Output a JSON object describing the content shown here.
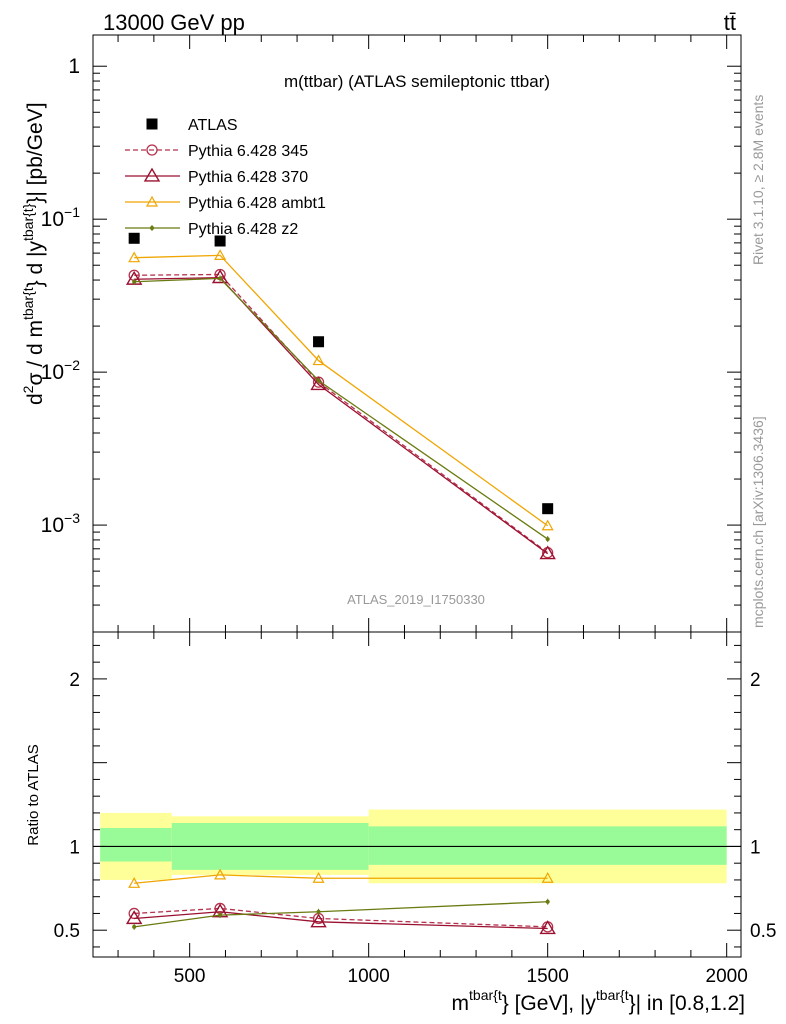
{
  "header": {
    "left": "13000 GeV pp",
    "right": "tt̄"
  },
  "side_labels": {
    "rivet": "Rivet 3.1.10, ≥ 2.8M events",
    "mcplots": "mcplots.cern.ch [arXiv:1306.3436]"
  },
  "chart_data": [
    {
      "type": "scatter",
      "panel": "main",
      "title": "m(ttbar) (ATLAS semileptonic ttbar)",
      "watermark": "ATLAS_2019_I1750330",
      "ylabel": {
        "main": "d²σ / d m^{tbar{t}} d |y^{tbar{t}}| [pb/GeV]",
        "part1": "d",
        "sup1": "2",
        "part2": "σ /  d m",
        "sup2": "tbar{t",
        "part3": "} d |y",
        "sup3": "tbar{t}",
        "part4": "}| [pb/GeV]"
      },
      "yscale": "log",
      "ylim": [
        0.0002,
        1.6
      ],
      "xlim": [
        230,
        2040
      ],
      "yticks": [
        {
          "value": 1,
          "base": "1",
          "exp": ""
        },
        {
          "value": 0.1,
          "base": "10",
          "exp": "−1"
        },
        {
          "value": 0.01,
          "base": "10",
          "exp": "−2"
        },
        {
          "value": 0.001,
          "base": "10",
          "exp": "−3"
        }
      ],
      "legend_position": "top-left",
      "series": [
        {
          "name": "ATLAS",
          "color": "#000000",
          "marker": "square",
          "style": "points",
          "x": [
            345,
            585,
            860,
            1500
          ],
          "y": [
            0.075,
            0.072,
            0.0158,
            0.00128
          ]
        },
        {
          "name": "Pythia 6.428 345",
          "color": "#b5324d",
          "marker": "circle",
          "style": "dashed",
          "x": [
            345,
            585,
            860,
            1500
          ],
          "y": [
            0.043,
            0.0435,
            0.0086,
            0.00066
          ]
        },
        {
          "name": "Pythia 6.428 370",
          "color": "#9b1030",
          "marker": "triangle",
          "style": "solid",
          "x": [
            345,
            585,
            860,
            1500
          ],
          "y": [
            0.0405,
            0.0415,
            0.0083,
            0.00065
          ]
        },
        {
          "name": "Pythia 6.428 ambt1",
          "color": "#f0a500",
          "marker": "triangle-open-small",
          "style": "solid",
          "x": [
            345,
            585,
            860,
            1500
          ],
          "y": [
            0.056,
            0.058,
            0.0119,
            0.00099
          ]
        },
        {
          "name": "Pythia 6.428 z2",
          "color": "#6b7a10",
          "marker": "dot",
          "style": "solid",
          "x": [
            345,
            585,
            860,
            1500
          ],
          "y": [
            0.039,
            0.041,
            0.0088,
            0.00081
          ]
        }
      ]
    },
    {
      "type": "line",
      "panel": "ratio",
      "ylabel": "Ratio to ATLAS",
      "xlabel": {
        "full": "m^{tbar{t}} [GeV], |y^{tbar{t}}| in [0.8,1.2]",
        "part1": "m",
        "sup1": "tbar{t",
        "part2": "} [GeV], |y",
        "sup2": "tbar{t",
        "part3": "}| in [0.8,1.2]"
      },
      "ylim": [
        0.34,
        2.28
      ],
      "xlim": [
        230,
        2040
      ],
      "xticks": [
        500,
        1000,
        1500,
        2000
      ],
      "yticks": [
        0.5,
        1,
        2
      ],
      "bins": [
        {
          "lo": 250,
          "hi": 450,
          "stat": [
            0.91,
            1.11
          ],
          "total": [
            0.8,
            1.2
          ]
        },
        {
          "lo": 450,
          "hi": 1000,
          "stat": [
            0.86,
            1.14
          ],
          "total": [
            0.83,
            1.18
          ]
        },
        {
          "lo": 1000,
          "hi": 2000,
          "stat": [
            0.89,
            1.12
          ],
          "total": [
            0.78,
            1.22
          ]
        }
      ],
      "series": [
        {
          "name": "Pythia 6.428 345",
          "x": [
            345,
            585,
            860,
            1500
          ],
          "y": [
            0.6,
            0.63,
            0.57,
            0.52
          ]
        },
        {
          "name": "Pythia 6.428 370",
          "x": [
            345,
            585,
            860,
            1500
          ],
          "y": [
            0.57,
            0.61,
            0.55,
            0.51
          ]
        },
        {
          "name": "Pythia 6.428 ambt1",
          "x": [
            345,
            585,
            860,
            1500
          ],
          "y": [
            0.78,
            0.83,
            0.81,
            0.81
          ]
        },
        {
          "name": "Pythia 6.428 z2",
          "x": [
            345,
            585,
            860,
            1500
          ],
          "y": [
            0.52,
            0.59,
            0.61,
            0.67
          ]
        }
      ]
    }
  ]
}
